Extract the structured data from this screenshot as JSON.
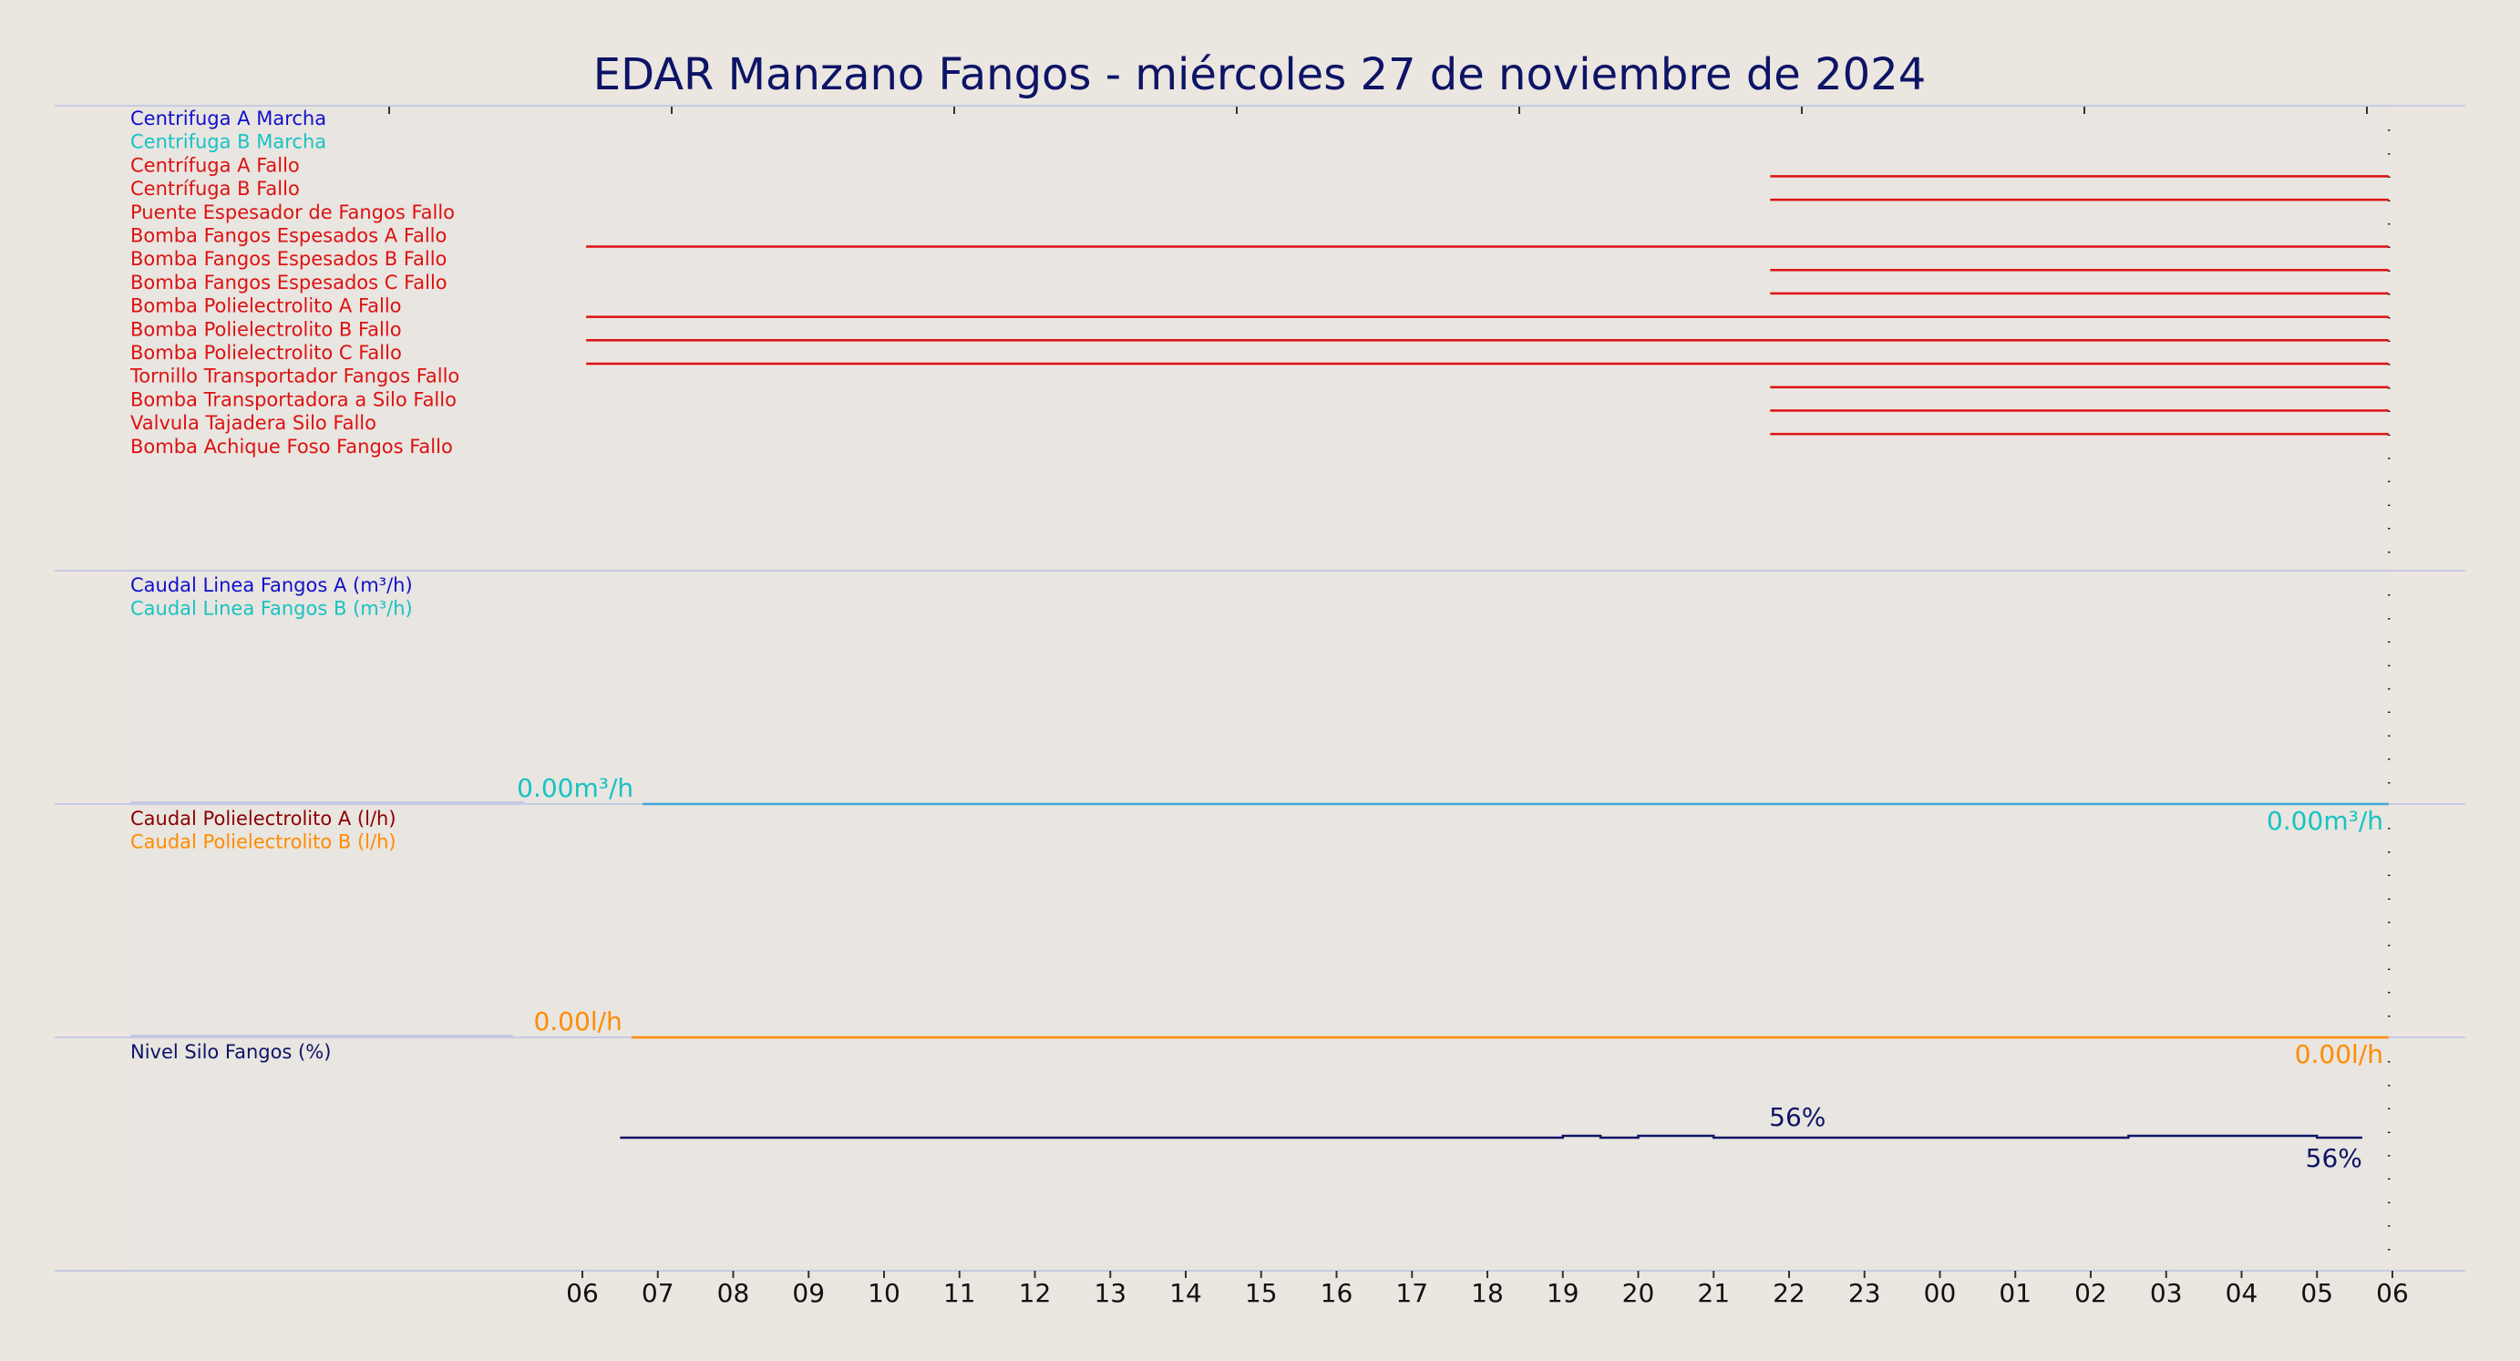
{
  "chart_data": {
    "type": "line",
    "title": "EDAR Manzano Fangos   -   miércoles 27 de noviembre de 2024",
    "x_ticks": [
      "06",
      "07",
      "08",
      "09",
      "10",
      "11",
      "12",
      "13",
      "14",
      "15",
      "16",
      "17",
      "18",
      "19",
      "20",
      "21",
      "22",
      "23",
      "00",
      "01",
      "02",
      "03",
      "04",
      "05",
      "06"
    ],
    "x_range": [
      "06:00",
      "06:00 (+1)"
    ],
    "grid": true,
    "panels": [
      {
        "name": "digital-signals",
        "signals": [
          {
            "label": "Centrifuga A Marcha",
            "color": "#1010cc",
            "segments": []
          },
          {
            "label": "Centrifuga B Marcha",
            "color": "#17c3c3",
            "segments": []
          },
          {
            "label": "Centrífuga A Fallo",
            "color": "#dd1111",
            "segments": [
              [
                21.75,
                29.95
              ]
            ]
          },
          {
            "label": "Centrífuga B Fallo",
            "color": "#dd1111",
            "segments": [
              [
                21.75,
                29.95
              ]
            ]
          },
          {
            "label": "Puente Espesador de Fangos Fallo",
            "color": "#dd1111",
            "segments": []
          },
          {
            "label": "Bomba Fangos Espesados A Fallo",
            "color": "#dd1111",
            "segments": [
              [
                6.05,
                29.95
              ]
            ]
          },
          {
            "label": "Bomba Fangos Espesados B Fallo",
            "color": "#dd1111",
            "segments": [
              [
                21.75,
                29.95
              ]
            ]
          },
          {
            "label": "Bomba Fangos Espesados C Fallo",
            "color": "#dd1111",
            "segments": [
              [
                21.75,
                29.95
              ]
            ]
          },
          {
            "label": "Bomba Polielectrolito A Fallo",
            "color": "#dd1111",
            "segments": [
              [
                6.05,
                29.95
              ]
            ]
          },
          {
            "label": "Bomba Polielectrolito B Fallo",
            "color": "#dd1111",
            "segments": [
              [
                6.05,
                29.95
              ]
            ]
          },
          {
            "label": "Bomba Polielectrolito C Fallo",
            "color": "#dd1111",
            "segments": [
              [
                6.05,
                29.95
              ]
            ]
          },
          {
            "label": "Tornillo Transportador Fangos Fallo",
            "color": "#dd1111",
            "segments": [
              [
                21.75,
                29.95
              ]
            ]
          },
          {
            "label": "Bomba Transportadora a Silo Fallo",
            "color": "#dd1111",
            "segments": [
              [
                21.75,
                29.95
              ]
            ]
          },
          {
            "label": "Valvula Tajadera Silo Fallo",
            "color": "#dd1111",
            "segments": [
              [
                21.75,
                29.95
              ]
            ]
          },
          {
            "label": "Bomba Achique Foso Fangos Fallo",
            "color": "#dd1111",
            "segments": []
          }
        ]
      },
      {
        "name": "caudal-fangos",
        "series": [
          {
            "label": "Caudal Linea Fangos A (m³/h)",
            "color": "#1010cc"
          },
          {
            "label": "Caudal Linea Fangos B (m³/h)",
            "color": "#17c3c3"
          }
        ],
        "line": {
          "color": "#3fa9d9",
          "x": [
            6.8,
            29.95
          ],
          "y": [
            0,
            0
          ]
        },
        "start_value": "0.00m³/h",
        "end_value": "0.00m³/h",
        "value_color": "#17c3c3"
      },
      {
        "name": "caudal-polielectrolito",
        "series": [
          {
            "label": "Caudal Polielectrolito A (l/h)",
            "color": "#8b0000"
          },
          {
            "label": "Caudal Polielectrolito B (l/h)",
            "color": "#ff8c00"
          }
        ],
        "line": {
          "color": "#ff8c00",
          "x": [
            6.65,
            29.95
          ],
          "y": [
            0,
            0
          ]
        },
        "start_value": "0.00l/h",
        "end_value": "0.00l/h",
        "value_color": "#ff8c00"
      },
      {
        "name": "nivel-silo",
        "series": [
          {
            "label": "Nivel Silo Fangos (%)",
            "color": "#0d1466"
          }
        ],
        "line": {
          "color": "#0d1466",
          "x": [
            6.5,
            19.0,
            19.0,
            19.5,
            19.5,
            20.0,
            20.0,
            21.0,
            21.0,
            21.7,
            22.4,
            22.4,
            24.0,
            26.5,
            26.5,
            29.0,
            29.0,
            29.6
          ],
          "y": [
            56,
            56,
            56.1,
            56.1,
            56,
            56,
            56.1,
            56.1,
            56,
            56,
            56,
            56,
            56,
            56,
            56.1,
            56.1,
            56,
            56
          ]
        },
        "ylim": [
          0,
          100
        ],
        "mid_value": "56%",
        "end_value": "56%",
        "value_color": "#0d1466"
      }
    ]
  }
}
